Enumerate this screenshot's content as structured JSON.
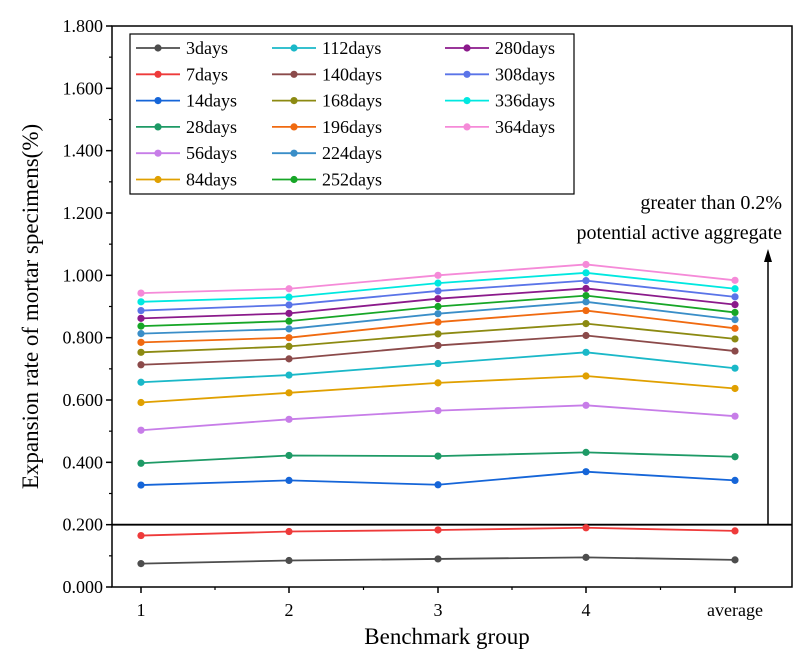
{
  "chart_data": {
    "type": "line",
    "title": "",
    "xlabel": "Benchmark group",
    "ylabel": "Expansion rate of mortar specimens(%)",
    "categories": [
      "1",
      "2",
      "3",
      "4",
      "average"
    ],
    "ylim": [
      0,
      1.8
    ],
    "yticks": [
      "0.000",
      "0.200",
      "0.400",
      "0.600",
      "0.800",
      "1.000",
      "1.200",
      "1.400",
      "1.600",
      "1.800"
    ],
    "grid": false,
    "legend_position": "top-left",
    "threshold": {
      "value": 0.2,
      "line1": "greater than 0.2%",
      "line2": "potential active aggregate"
    },
    "series": [
      {
        "name": "3days",
        "color": "#4d4d4d",
        "values": [
          0.075,
          0.085,
          0.09,
          0.095,
          0.087
        ]
      },
      {
        "name": "7days",
        "color": "#ee3a3a",
        "values": [
          0.165,
          0.178,
          0.183,
          0.19,
          0.18
        ]
      },
      {
        "name": "14days",
        "color": "#1565d8",
        "values": [
          0.327,
          0.342,
          0.328,
          0.37,
          0.342
        ]
      },
      {
        "name": "28days",
        "color": "#1e9a66",
        "values": [
          0.397,
          0.422,
          0.42,
          0.432,
          0.418
        ]
      },
      {
        "name": "56days",
        "color": "#c77de8",
        "values": [
          0.503,
          0.538,
          0.566,
          0.583,
          0.548
        ]
      },
      {
        "name": "84days",
        "color": "#e0a000",
        "values": [
          0.592,
          0.623,
          0.655,
          0.677,
          0.637
        ]
      },
      {
        "name": "112days",
        "color": "#1ab8c8",
        "values": [
          0.657,
          0.68,
          0.717,
          0.753,
          0.702
        ]
      },
      {
        "name": "140days",
        "color": "#8b4a4a",
        "values": [
          0.713,
          0.732,
          0.775,
          0.807,
          0.757
        ]
      },
      {
        "name": "168days",
        "color": "#8c8a12",
        "values": [
          0.753,
          0.772,
          0.812,
          0.845,
          0.796
        ]
      },
      {
        "name": "196days",
        "color": "#f06a10",
        "values": [
          0.785,
          0.8,
          0.85,
          0.887,
          0.83
        ]
      },
      {
        "name": "224days",
        "color": "#3a8ec8",
        "values": [
          0.813,
          0.828,
          0.877,
          0.915,
          0.858
        ]
      },
      {
        "name": "252days",
        "color": "#17a627",
        "values": [
          0.837,
          0.853,
          0.9,
          0.935,
          0.881
        ]
      },
      {
        "name": "280days",
        "color": "#8b1a8b",
        "values": [
          0.862,
          0.878,
          0.925,
          0.958,
          0.906
        ]
      },
      {
        "name": "308days",
        "color": "#5a74e8",
        "values": [
          0.887,
          0.905,
          0.95,
          0.983,
          0.931
        ]
      },
      {
        "name": "336days",
        "color": "#00e8e0",
        "values": [
          0.915,
          0.93,
          0.975,
          1.008,
          0.957
        ]
      },
      {
        "name": "364days",
        "color": "#f58ad8",
        "values": [
          0.943,
          0.957,
          1.0,
          1.035,
          0.984
        ]
      }
    ]
  }
}
